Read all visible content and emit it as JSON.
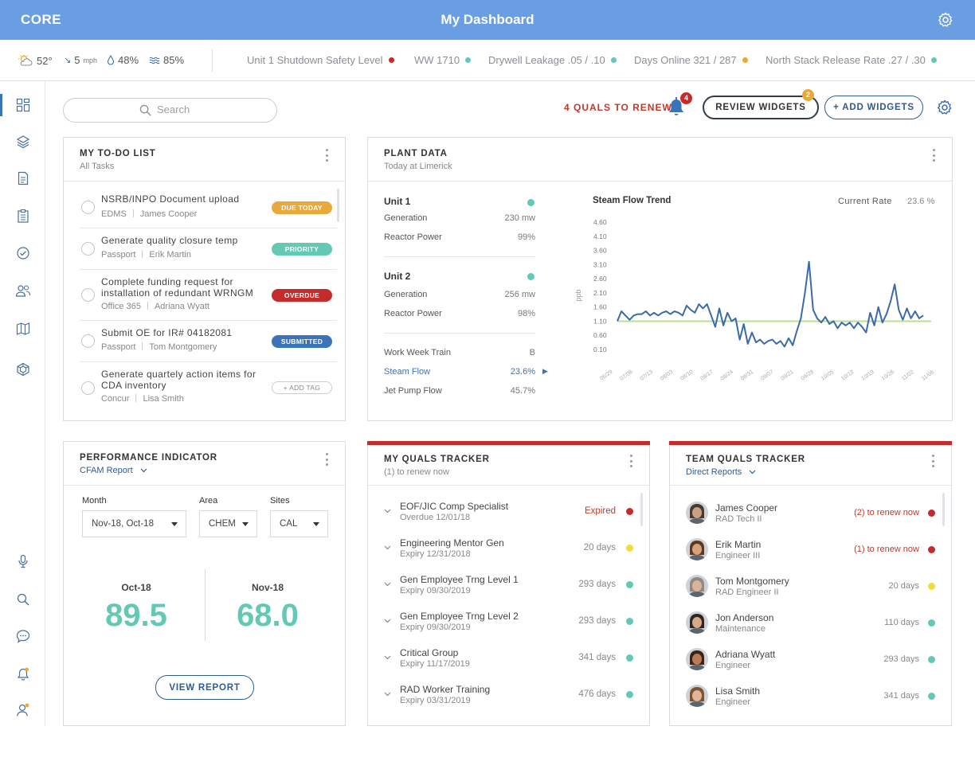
{
  "app": {
    "brand": "CORE",
    "title": "My Dashboard"
  },
  "weather": {
    "temp": "52°",
    "wind": "5",
    "wind_unit": "mph",
    "rain": "48%",
    "humidity": "85%"
  },
  "metrics": [
    {
      "label": "Unit 1 Shutdown Safety Level",
      "color": "#c62b2b"
    },
    {
      "label": "WW 1710",
      "color": "#63c9b5"
    },
    {
      "label": "Drywell Leakage .05 / .10",
      "color": "#63c9b5"
    },
    {
      "label": "Days Online 321 / 287",
      "color": "#e8a83a"
    },
    {
      "label": "North Stack Release Rate .27 / .30",
      "color": "#63c9b5"
    }
  ],
  "search": {
    "placeholder": "Search"
  },
  "actions": {
    "quals_to_renew": "4 QUALS TO RENEW",
    "bell_count": "4",
    "review_widgets": "REVIEW WIDGETS",
    "review_count": "2",
    "add_widgets": "+ ADD WIDGETS"
  },
  "todo": {
    "title": "MY TO-DO LIST",
    "subtitle": "All Tasks",
    "items": [
      {
        "title": "NSRB/INPO Document upload",
        "source": "EDMS",
        "owner": "James Cooper",
        "tag": "DUE TODAY",
        "tag_color": "#e8a83a"
      },
      {
        "title": "Generate quality closure temp",
        "source": "Passport",
        "owner": "Erik Martin",
        "tag": "PRIORITY",
        "tag_color": "#63c9b5"
      },
      {
        "title": "Complete funding request for installation of redundant WRNGM",
        "source": "Office 365",
        "owner": "Adriana Wyatt",
        "tag": "OVERDUE",
        "tag_color": "#c62b2b"
      },
      {
        "title": "Submit OE for IR# 04182081",
        "source": "Passport",
        "owner": "Tom Montgomery",
        "tag": "SUBMITTED",
        "tag_color": "#3b73b9"
      },
      {
        "title": "Generate quartely action items for CDA inventory",
        "source": "Concur",
        "owner": "Lisa Smith",
        "tag": "+ ADD TAG",
        "tag_color": ""
      }
    ]
  },
  "plant": {
    "title": "PLANT DATA",
    "subtitle": "Today at Limerick",
    "unit1": {
      "name": "Unit 1",
      "gen_label": "Generation",
      "gen": "230 mw",
      "power_label": "Reactor Power",
      "power": "99%",
      "color": "#63c9b5"
    },
    "unit2": {
      "name": "Unit 2",
      "gen_label": "Generation",
      "gen": "256 mw",
      "power_label": "Reactor Power",
      "power": "98%",
      "color": "#63c9b5"
    },
    "train_label": "Work Week Train",
    "train": "B",
    "steam_label": "Steam Flow",
    "steam": "23.6%",
    "jet_label": "Jet Pump Flow",
    "jet": "45.7%"
  },
  "chart_data": {
    "type": "line",
    "title": "Steam Flow Trend",
    "current_rate_label": "Current Rate",
    "current_rate": "23.6 %",
    "ylabel": "ppb",
    "yticks": [
      "4.60",
      "4.10",
      "3.60",
      "3.10",
      "2.60",
      "2.10",
      "1.60",
      "1.10",
      "0.60",
      "0.10"
    ],
    "xticks": [
      "06/29",
      "07/06",
      "07/13",
      "08/03",
      "08/10",
      "08/17",
      "08/24",
      "08/31",
      "09/07",
      "09/21",
      "09/28",
      "10/05",
      "10/12",
      "10/19",
      "10/26",
      "11/02",
      "11/06"
    ],
    "ylim": [
      0.1,
      4.6
    ],
    "baseline": 1.1,
    "series": [
      {
        "color": "#3b6aa8",
        "values": [
          1.1,
          1.45,
          1.3,
          1.15,
          1.3,
          1.35,
          1.35,
          1.45,
          1.3,
          1.4,
          1.3,
          1.4,
          1.45,
          1.35,
          1.45,
          1.4,
          1.3,
          1.65,
          1.5,
          1.4,
          1.7,
          1.55,
          1.7,
          1.3,
          0.9,
          1.55,
          0.95,
          1.4,
          1.1,
          1.2,
          0.45,
          1.0,
          0.3,
          0.7,
          0.35,
          0.45,
          0.3,
          0.4,
          0.45,
          0.3,
          0.4,
          0.2,
          0.5,
          0.25,
          0.75,
          1.2,
          2.1,
          3.2,
          1.5,
          1.2,
          1.05,
          1.25,
          1.0,
          1.1,
          0.85,
          1.05,
          0.95,
          1.05,
          0.85,
          1.05,
          0.9,
          0.7,
          1.4,
          0.95,
          1.6,
          1.05,
          1.35,
          1.8,
          2.4,
          1.5,
          1.15,
          1.55,
          1.2,
          1.45,
          1.2,
          1.3
        ]
      }
    ]
  },
  "performance": {
    "title": "PERFORMANCE INDICATOR",
    "report": "CFAM Report",
    "month_label": "Month",
    "month_value": "Nov-18, Oct-18",
    "area_label": "Area",
    "area_value": "CHEM",
    "sites_label": "Sites",
    "sites_value": "CAL",
    "left_month": "Oct-18",
    "left_value": "89.5",
    "right_month": "Nov-18",
    "right_value": "68.0",
    "button": "VIEW REPORT"
  },
  "my_quals": {
    "title": "MY QUALS TRACKER",
    "subtitle": "(1) to renew now",
    "items": [
      {
        "name": "EOF/JIC Comp Specialist",
        "date": "Overdue 12/01/18",
        "status": "Expired",
        "color": "#c62b2b"
      },
      {
        "name": "Engineering Mentor Gen",
        "date": "Expiry 12/31/2018",
        "status": "20 days",
        "color": "#f1dc3a"
      },
      {
        "name": "Gen Employee Trng Level 1",
        "date": "Expiry 09/30/2019",
        "status": "293 days",
        "color": "#63c9b5"
      },
      {
        "name": "Gen Employee Trng Level 2",
        "date": "Expiry 09/30/2019",
        "status": "293 days",
        "color": "#63c9b5"
      },
      {
        "name": "Critical Group",
        "date": "Expiry 11/17/2019",
        "status": "341 days",
        "color": "#63c9b5"
      },
      {
        "name": "RAD Worker Training",
        "date": "Expiry 03/31/2019",
        "status": "476 days",
        "color": "#63c9b5"
      }
    ]
  },
  "team_quals": {
    "title": "TEAM QUALS TRACKER",
    "subtitle": "Direct Reports",
    "items": [
      {
        "name": "James Cooper",
        "role": "RAD Tech II",
        "status": "(2) to renew now",
        "color": "#c62b2b",
        "skin": "#c9a083",
        "hair": "#4a3a2c"
      },
      {
        "name": "Erik Martin",
        "role": "Engineer III",
        "status": "(1) to renew now",
        "color": "#c62b2b",
        "skin": "#d7a27a",
        "hair": "#5a3a22"
      },
      {
        "name": "Tom Montgomery",
        "role": "RAD Engineer II",
        "status": "20 days",
        "color": "#f1dc3a",
        "skin": "#d9b49a",
        "hair": "#8f8a86"
      },
      {
        "name": "Jon Anderson",
        "role": "Maintenance",
        "status": "110 days",
        "color": "#63c9b5",
        "skin": "#d8a987",
        "hair": "#2e2622"
      },
      {
        "name": "Adriana Wyatt",
        "role": "Engineer",
        "status": "293 days",
        "color": "#63c9b5",
        "skin": "#b97a54",
        "hair": "#3a2418"
      },
      {
        "name": "Lisa Smith",
        "role": "Engineer",
        "status": "341 days",
        "color": "#63c9b5",
        "skin": "#e2b695",
        "hair": "#7a5433"
      }
    ]
  }
}
